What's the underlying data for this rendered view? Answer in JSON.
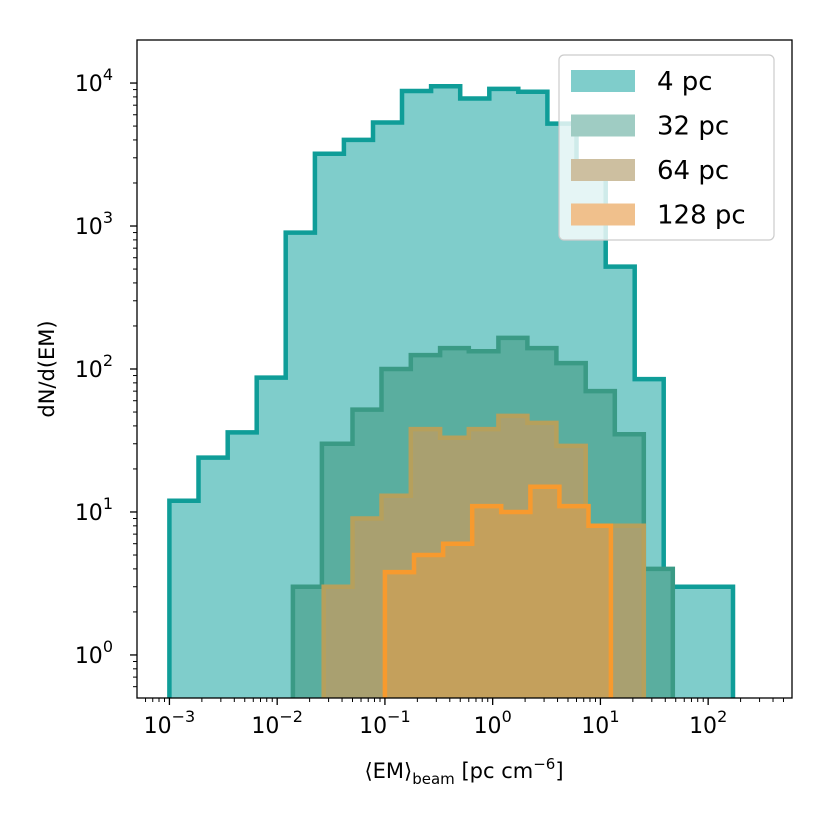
{
  "chart_data": {
    "type": "histogram",
    "xscale": "log",
    "yscale": "log",
    "xlim": [
      0.0005,
      600
    ],
    "ylim": [
      0.5,
      20000
    ],
    "xlabel": {
      "prefix": "⟨EM⟩",
      "sub": "beam",
      "unit_open": " [pc cm",
      "unit_sup": "−6",
      "unit_close": "]"
    },
    "ylabel": "dN/d(EM)",
    "x_ticks": [
      {
        "value": 0.001,
        "base": "10",
        "exp": "−3"
      },
      {
        "value": 0.01,
        "base": "10",
        "exp": "−2"
      },
      {
        "value": 0.1,
        "base": "10",
        "exp": "−1"
      },
      {
        "value": 1,
        "base": "10",
        "exp": "0"
      },
      {
        "value": 10,
        "base": "10",
        "exp": "1"
      },
      {
        "value": 100,
        "base": "10",
        "exp": "2"
      }
    ],
    "y_ticks": [
      {
        "value": 1,
        "base": "10",
        "exp": "0"
      },
      {
        "value": 10,
        "base": "10",
        "exp": "1"
      },
      {
        "value": 100,
        "base": "10",
        "exp": "2"
      },
      {
        "value": 1000,
        "base": "10",
        "exp": "3"
      },
      {
        "value": 10000,
        "base": "10",
        "exp": "4"
      }
    ],
    "legend_position": "top-right",
    "series": [
      {
        "name": "4 pc",
        "fill": "#7fcdcb",
        "edge": "#0f9d98",
        "edges": [
          0.001,
          0.00186,
          0.00347,
          0.00646,
          0.012,
          0.0224,
          0.0416,
          0.0775,
          0.144,
          0.268,
          0.5,
          0.93,
          1.73,
          3.22,
          6,
          11.2,
          20.8,
          38.7,
          72,
          134,
          170
        ],
        "counts": [
          12,
          24,
          36,
          87,
          900,
          3200,
          4000,
          5300,
          8800,
          9500,
          7800,
          9100,
          8700,
          5200,
          2500,
          520,
          85,
          3,
          3,
          3
        ]
      },
      {
        "name": "32 pc",
        "fill": "#5aae9f",
        "edge": "#3a9a85",
        "edges": [
          0.014,
          0.026,
          0.05,
          0.093,
          0.174,
          0.325,
          0.6,
          1.13,
          2.1,
          3.9,
          7.3,
          13.6,
          25.3,
          47
        ],
        "counts": [
          3,
          30,
          52,
          100,
          125,
          140,
          133,
          165,
          140,
          110,
          70,
          35,
          4
        ]
      },
      {
        "name": "64 pc",
        "fill": "#a9a070",
        "edge": "#b6a05c",
        "edges": [
          0.027,
          0.05,
          0.093,
          0.174,
          0.325,
          0.6,
          1.13,
          2.1,
          3.9,
          7.3,
          13.6,
          25.3
        ],
        "counts": [
          3,
          9,
          13,
          38,
          33,
          38,
          47,
          42,
          29,
          8,
          8
        ]
      },
      {
        "name": "128 pc",
        "fill": "#c4a05c",
        "edge": "#f79a2e",
        "edges": [
          0.1,
          0.186,
          0.347,
          0.646,
          1.2,
          2.24,
          4.16,
          7.75,
          12.5
        ],
        "counts": [
          3.8,
          5,
          6,
          11,
          10,
          15,
          11,
          8
        ]
      }
    ],
    "legend_swatches": [
      "#7fcdcb",
      "#9fccc3",
      "#cdbfa0",
      "#f0c08c"
    ]
  }
}
